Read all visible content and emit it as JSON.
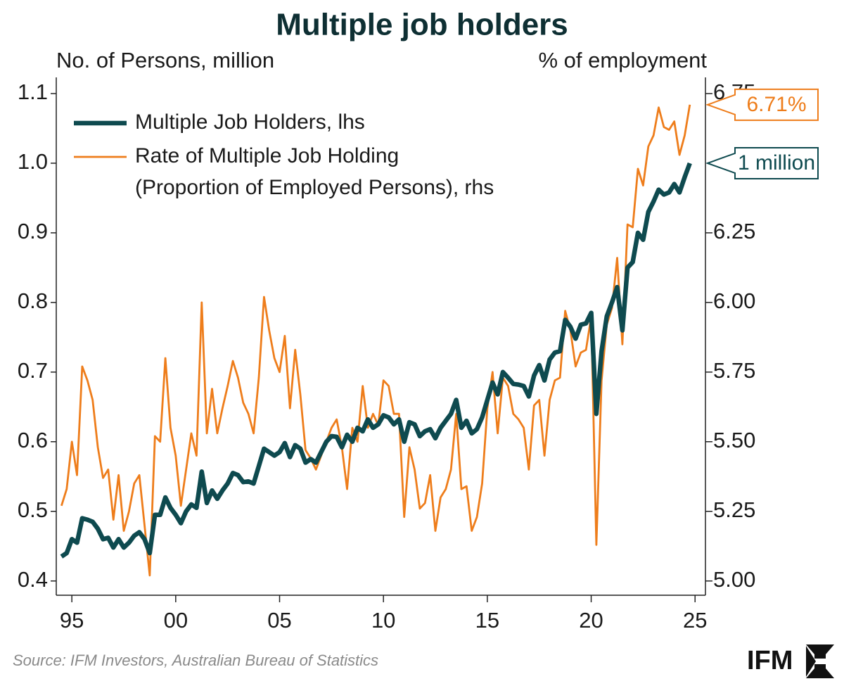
{
  "chart_data": {
    "type": "line",
    "title": "Multiple job holders",
    "ylabel": "No. of Persons, million",
    "y2label": "% of employment",
    "source": "Source: IFM Investors, Australian Bureau of Statistics",
    "logo": "IFM",
    "xlim": [
      1994.25,
      2025.5
    ],
    "xticks": [
      {
        "value": 1995,
        "label": "95"
      },
      {
        "value": 2000,
        "label": "00"
      },
      {
        "value": 2005,
        "label": "05"
      },
      {
        "value": 2010,
        "label": "10"
      },
      {
        "value": 2015,
        "label": "15"
      },
      {
        "value": 2020,
        "label": "20"
      },
      {
        "value": 2025,
        "label": "25"
      }
    ],
    "ylim": [
      0.37,
      1.1
    ],
    "yticks": [
      0.4,
      0.5,
      0.6,
      0.7,
      0.8,
      0.9,
      {
        "value": 1,
        "label": "1.0"
      },
      1.1
    ],
    "y2lim": [
      4.925,
      6.75
    ],
    "y2ticks": [
      {
        "value": 5,
        "label": "5.00"
      },
      {
        "value": 5.25,
        "label": "5.25"
      },
      {
        "value": 5.5,
        "label": "5.50"
      },
      {
        "value": 5.75,
        "label": "5.75"
      },
      {
        "value": 6,
        "label": "6.00"
      },
      {
        "value": 6.25,
        "label": "6.25"
      },
      {
        "value": 6.75,
        "label": "6.75"
      }
    ],
    "x": [
      1994.5,
      1994.75,
      1995,
      1995.25,
      1995.5,
      1995.75,
      1996,
      1996.25,
      1996.5,
      1996.75,
      1997,
      1997.25,
      1997.5,
      1997.75,
      1998,
      1998.25,
      1998.5,
      1998.75,
      1999,
      1999.25,
      1999.5,
      1999.75,
      2000,
      2000.25,
      2000.5,
      2000.75,
      2001,
      2001.25,
      2001.5,
      2001.75,
      2002,
      2002.25,
      2002.5,
      2002.75,
      2003,
      2003.25,
      2003.5,
      2003.75,
      2004,
      2004.25,
      2004.5,
      2004.75,
      2005,
      2005.25,
      2005.5,
      2005.75,
      2006,
      2006.25,
      2006.5,
      2006.75,
      2007,
      2007.25,
      2007.5,
      2007.75,
      2008,
      2008.25,
      2008.5,
      2008.75,
      2009,
      2009.25,
      2009.5,
      2009.75,
      2010,
      2010.25,
      2010.5,
      2010.75,
      2011,
      2011.25,
      2011.5,
      2011.75,
      2012,
      2012.25,
      2012.5,
      2012.75,
      2013,
      2013.25,
      2013.5,
      2013.75,
      2014,
      2014.25,
      2014.5,
      2014.75,
      2015,
      2015.25,
      2015.5,
      2015.75,
      2016,
      2016.25,
      2016.5,
      2016.75,
      2017,
      2017.25,
      2017.5,
      2017.75,
      2018,
      2018.25,
      2018.5,
      2018.75,
      2019,
      2019.25,
      2019.5,
      2019.75,
      2020,
      2020.25,
      2020.5,
      2020.75,
      2021,
      2021.25,
      2021.5,
      2021.75,
      2022,
      2022.25,
      2022.5,
      2022.75,
      2023,
      2023.25,
      2023.5,
      2023.75,
      2024,
      2024.25,
      2024.5,
      2024.75
    ],
    "series": [
      {
        "name": "Multiple Job Holders, lhs",
        "color": "#0e4a4f",
        "end_label": "1 million",
        "values": [
          0.435,
          0.44,
          0.46,
          0.455,
          0.49,
          0.488,
          0.485,
          0.475,
          0.46,
          0.462,
          0.448,
          0.46,
          0.448,
          0.455,
          0.465,
          0.47,
          0.46,
          0.44,
          0.495,
          0.495,
          0.52,
          0.505,
          0.495,
          0.483,
          0.5,
          0.51,
          0.505,
          0.557,
          0.512,
          0.53,
          0.518,
          0.53,
          0.54,
          0.555,
          0.552,
          0.542,
          0.543,
          0.54,
          0.565,
          0.59,
          0.585,
          0.58,
          0.585,
          0.598,
          0.578,
          0.595,
          0.59,
          0.57,
          0.575,
          0.57,
          0.585,
          0.6,
          0.608,
          0.607,
          0.592,
          0.61,
          0.6,
          0.62,
          0.615,
          0.632,
          0.62,
          0.625,
          0.638,
          0.635,
          0.625,
          0.632,
          0.6,
          0.628,
          0.625,
          0.608,
          0.615,
          0.618,
          0.605,
          0.62,
          0.63,
          0.64,
          0.66,
          0.62,
          0.63,
          0.612,
          0.618,
          0.635,
          0.66,
          0.685,
          0.668,
          0.7,
          0.692,
          0.683,
          0.682,
          0.68,
          0.665,
          0.695,
          0.71,
          0.688,
          0.718,
          0.728,
          0.73,
          0.775,
          0.765,
          0.748,
          0.768,
          0.77,
          0.785,
          0.64,
          0.73,
          0.78,
          0.8,
          0.822,
          0.76,
          0.85,
          0.858,
          0.9,
          0.89,
          0.93,
          0.945,
          0.962,
          0.955,
          0.958,
          0.97,
          0.958,
          0.98,
          1.0
        ]
      },
      {
        "name": "Rate of Multiple Job Holding (Proportion of Employed Persons), rhs",
        "color": "#ee7d1b",
        "axis": "y2",
        "end_label": "6.71%",
        "values": [
          5.27,
          5.33,
          5.5,
          5.38,
          5.77,
          5.72,
          5.65,
          5.48,
          5.37,
          5.4,
          5.22,
          5.38,
          5.18,
          5.25,
          5.35,
          5.38,
          5.2,
          5.02,
          5.52,
          5.5,
          5.8,
          5.55,
          5.45,
          5.27,
          5.4,
          5.53,
          5.45,
          6.0,
          5.53,
          5.69,
          5.53,
          5.62,
          5.7,
          5.79,
          5.73,
          5.64,
          5.6,
          5.53,
          5.73,
          6.02,
          5.9,
          5.8,
          5.75,
          5.88,
          5.62,
          5.83,
          5.67,
          5.47,
          5.44,
          5.4,
          5.45,
          5.5,
          5.55,
          5.58,
          5.48,
          5.33,
          5.55,
          5.5,
          5.7,
          5.55,
          5.6,
          5.56,
          5.72,
          5.7,
          5.6,
          5.6,
          5.23,
          5.48,
          5.4,
          5.26,
          5.28,
          5.38,
          5.18,
          5.3,
          5.33,
          5.4,
          5.6,
          5.33,
          5.34,
          5.18,
          5.23,
          5.35,
          5.62,
          5.75,
          5.53,
          5.73,
          5.7,
          5.6,
          5.58,
          5.55,
          5.4,
          5.63,
          5.65,
          5.45,
          5.65,
          5.72,
          5.73,
          5.97,
          5.9,
          5.77,
          5.82,
          5.83,
          5.95,
          5.13,
          5.72,
          5.92,
          5.98,
          6.16,
          5.85,
          6.28,
          6.27,
          6.48,
          6.42,
          6.56,
          6.6,
          6.7,
          6.63,
          6.62,
          6.65,
          6.53,
          6.6,
          6.71
        ]
      }
    ]
  }
}
